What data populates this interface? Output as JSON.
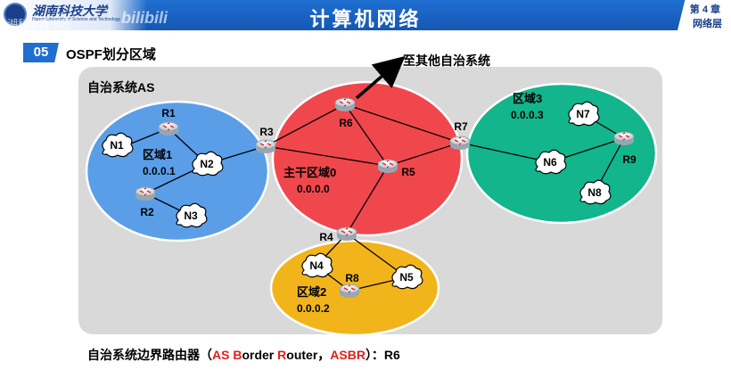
{
  "header": {
    "title": "计算机网络",
    "chapter_line1": "第 4 章",
    "chapter_line2": "网络层",
    "logo_text": "湖南科技大学",
    "logo_sub": "Hunan University of Science and Technology",
    "watermark_left": "湖科大教书匠",
    "watermark_right": "bilibili"
  },
  "section": {
    "number": "05",
    "title": "OSPF划分区域"
  },
  "diagram": {
    "as_label": "自治系统AS",
    "external_label": "至其他自治系统",
    "areas": [
      {
        "key": "area1",
        "name": "区域1",
        "id": "0.0.0.1",
        "color": "#5b9ee8"
      },
      {
        "key": "area0",
        "name": "主干区域0",
        "id": "0.0.0.0",
        "color": "#f0474d"
      },
      {
        "key": "area3",
        "name": "区域3",
        "id": "0.0.0.3",
        "color": "#12b58c"
      },
      {
        "key": "area2",
        "name": "区域2",
        "id": "0.0.0.2",
        "color": "#f2b41b"
      }
    ],
    "routers": [
      "R1",
      "R2",
      "R3",
      "R4",
      "R5",
      "R6",
      "R7",
      "R8",
      "R9"
    ],
    "networks": [
      "N1",
      "N2",
      "N3",
      "N4",
      "N5",
      "N6",
      "N7",
      "N8"
    ]
  },
  "footer": {
    "prefix": "自治系统边界路由器（",
    "as_letters": "AS B",
    "order": "order ",
    "r_letter": "R",
    "outer": "outer",
    "sep": "，",
    "asbr": "ASBR",
    "suffix": "）：R6"
  }
}
